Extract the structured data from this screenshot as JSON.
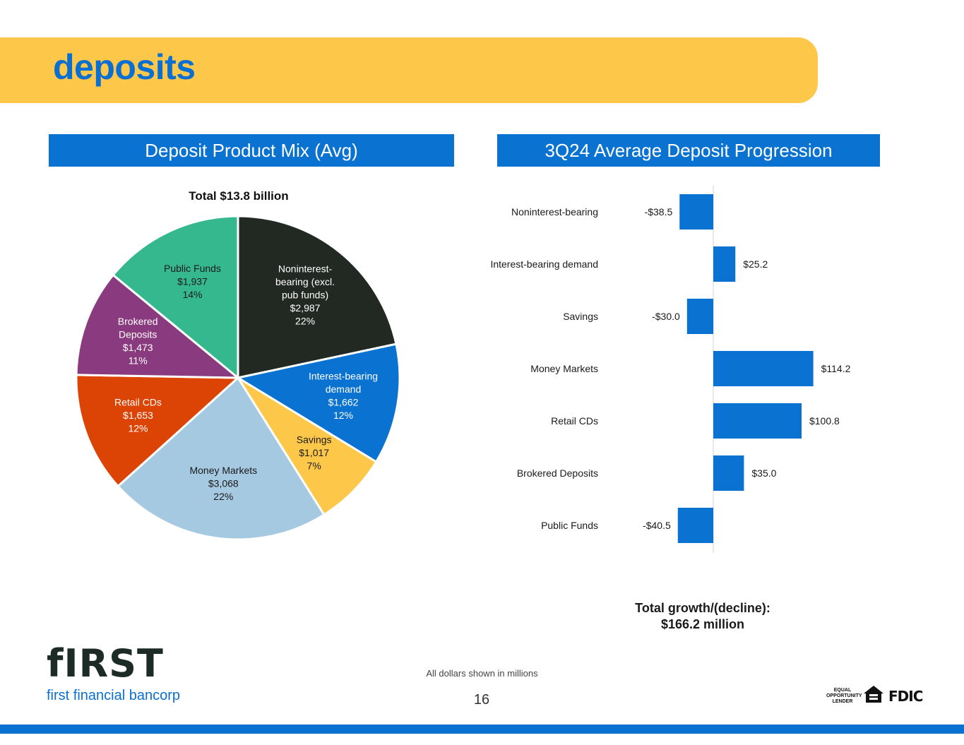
{
  "page": {
    "title": "deposits",
    "footnote": "All dollars shown in millions",
    "page_number": "16",
    "total_growth_label": "Total growth/(decline):",
    "total_growth_value": "$166.2 million"
  },
  "logo": {
    "mark": "fIRST",
    "text": "first financial bancorp"
  },
  "badges": {
    "equal_opportunity": "EQUAL OPPORTUNITY LENDER",
    "fdic": "FDIC"
  },
  "colors": {
    "band": "#fdc84a",
    "accent": "#0a72d0"
  },
  "chart_data": [
    {
      "type": "pie",
      "header": "Deposit Product Mix (Avg)",
      "title": "Total $13.8 billion",
      "slices": [
        {
          "label": [
            "Noninterest-",
            "bearing (excl.",
            "pub funds)"
          ],
          "value": 2987,
          "value_label": "$2,987",
          "pct": "22%",
          "color": "#222822",
          "text_color": "#ffffff"
        },
        {
          "label": [
            "Interest-bearing",
            "demand"
          ],
          "value": 1662,
          "value_label": "$1,662",
          "pct": "12%",
          "color": "#0a72d0",
          "text_color": "#ffffff"
        },
        {
          "label": [
            "Savings"
          ],
          "value": 1017,
          "value_label": "$1,017",
          "pct": "7%",
          "color": "#fdc84a",
          "text_color": "#1a1a1a"
        },
        {
          "label": [
            "Money Markets"
          ],
          "value": 3068,
          "value_label": "$3,068",
          "pct": "22%",
          "color": "#a6c9e2",
          "text_color": "#1a1a1a"
        },
        {
          "label": [
            "Retail CDs"
          ],
          "value": 1653,
          "value_label": "$1,653",
          "pct": "12%",
          "color": "#dc4405",
          "text_color": "#ffffff"
        },
        {
          "label": [
            "Brokered",
            "Deposits"
          ],
          "value": 1473,
          "value_label": "$1,473",
          "pct": "11%",
          "color": "#8a3a7e",
          "text_color": "#ffffff"
        },
        {
          "label": [
            "Public Funds"
          ],
          "value": 1937,
          "value_label": "$1,937",
          "pct": "14%",
          "color": "#35b88e",
          "text_color": "#1a1a1a"
        }
      ]
    },
    {
      "type": "bar",
      "orientation": "horizontal",
      "header": "3Q24 Average Deposit Progression",
      "categories": [
        "Noninterest-bearing",
        "Interest-bearing demand",
        "Savings",
        "Money Markets",
        "Retail CDs",
        "Brokered Deposits",
        "Public Funds"
      ],
      "values": [
        -38.5,
        25.2,
        -30.0,
        114.2,
        100.8,
        35.0,
        -40.5
      ],
      "value_labels": [
        "-$38.5",
        "$25.2",
        "-$30.0",
        "$114.2",
        "$100.8",
        "$35.0",
        "-$40.5"
      ],
      "color": "#0a72d0",
      "xlim": [
        -42,
        155
      ]
    }
  ]
}
